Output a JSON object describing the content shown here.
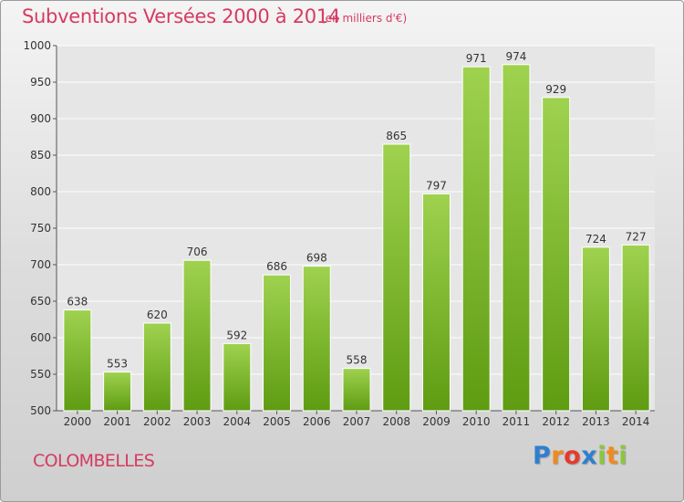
{
  "title": "Subventions Versées 2000 à 2014",
  "unit_label": "(en milliers d'€)",
  "commune": "COLOMBELLES",
  "logo": {
    "text": "Proxiti",
    "letters": [
      {
        "ch": "P",
        "color": "#2f7fcf"
      },
      {
        "ch": "r",
        "color": "#f08a1c"
      },
      {
        "ch": "o",
        "color": "#e63a2e"
      },
      {
        "ch": "x",
        "color": "#2f7fcf"
      },
      {
        "ch": "i",
        "color": "#8cc63f"
      },
      {
        "ch": "t",
        "color": "#f08a1c"
      },
      {
        "ch": "i",
        "color": "#8cc63f"
      }
    ]
  },
  "colors": {
    "bar_top": "#9fd24f",
    "bar_bottom": "#5e9c12",
    "title": "#d63b61",
    "grid": "#ffffff"
  },
  "chart_data": {
    "type": "bar",
    "categories": [
      "2000",
      "2001",
      "2002",
      "2003",
      "2004",
      "2005",
      "2006",
      "2007",
      "2008",
      "2009",
      "2010",
      "2011",
      "2012",
      "2013",
      "2014"
    ],
    "values": [
      638,
      553,
      620,
      706,
      592,
      686,
      698,
      558,
      865,
      797,
      971,
      974,
      929,
      724,
      727
    ],
    "ylim": [
      500,
      1000
    ],
    "yticks": [
      500,
      550,
      600,
      650,
      700,
      750,
      800,
      850,
      900,
      950,
      1000
    ],
    "grid": true,
    "title": "Subventions Versées 2000 à 2014",
    "xlabel": "",
    "ylabel": ""
  }
}
